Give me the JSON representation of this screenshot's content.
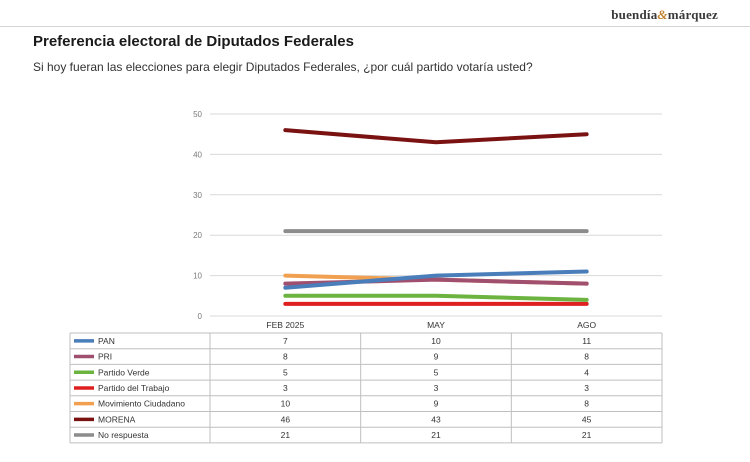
{
  "brand": {
    "name_left": "buendía",
    "ampersand": "&",
    "name_right": "márquez"
  },
  "header": {
    "title": "Preferencia electoral de Diputados Federales",
    "subtitle": "Si hoy fueran las elecciones para elegir Diputados Federales, ¿por cuál partido votaría usted?"
  },
  "chart_data": {
    "type": "line",
    "categories": [
      "FEB 2025",
      "MAY",
      "AGO"
    ],
    "ylim": [
      0,
      50
    ],
    "yticks": [
      0,
      10,
      20,
      30,
      40,
      50
    ],
    "grid": true,
    "legend": "table-below",
    "series": [
      {
        "name": "PAN",
        "values": [
          7,
          10,
          11
        ],
        "color": "#4a7ebb"
      },
      {
        "name": "PRI",
        "values": [
          8,
          9,
          8
        ],
        "color": "#a0506e"
      },
      {
        "name": "Partido Verde",
        "values": [
          5,
          5,
          4
        ],
        "color": "#6cb33f"
      },
      {
        "name": "Partido del Trabajo",
        "values": [
          3,
          3,
          3
        ],
        "color": "#e02020"
      },
      {
        "name": "Movimiento Ciudadano",
        "values": [
          10,
          9,
          8
        ],
        "color": "#f0a050"
      },
      {
        "name": "MORENA",
        "values": [
          46,
          43,
          45
        ],
        "color": "#7a1212"
      },
      {
        "name": "No respuesta",
        "values": [
          21,
          21,
          21
        ],
        "color": "#8c8c8c"
      }
    ]
  }
}
